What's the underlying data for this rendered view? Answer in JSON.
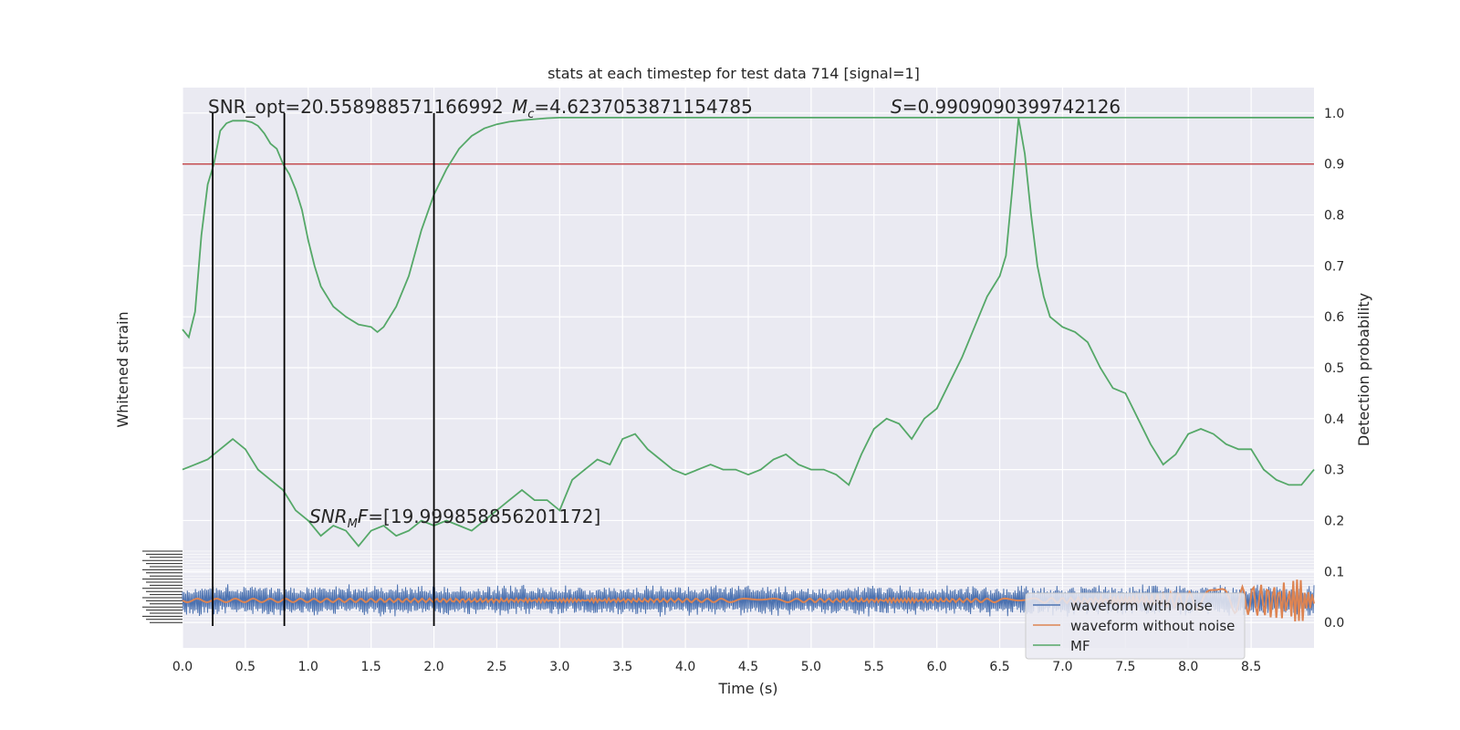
{
  "chart_data": {
    "type": "line",
    "title": "stats at each timestep for test data 714 [signal=1]",
    "xlabel": "Time (s)",
    "ylabel_left": "Whitened strain",
    "ylabel_right": "Detection probability",
    "xlim": [
      0.0,
      9.0
    ],
    "ylim_right": [
      -0.05,
      1.05
    ],
    "xticks": [
      "0.0",
      "0.5",
      "1.0",
      "1.5",
      "2.0",
      "2.5",
      "3.0",
      "3.5",
      "4.0",
      "4.5",
      "5.0",
      "5.5",
      "6.0",
      "6.5",
      "7.0",
      "7.5",
      "8.0",
      "8.5"
    ],
    "yticks_right": [
      "0.0",
      "0.1",
      "0.2",
      "0.3",
      "0.4",
      "0.5",
      "0.6",
      "0.7",
      "0.8",
      "0.9",
      "1.0"
    ],
    "grid": true,
    "threshold": 0.9,
    "vertical_markers": [
      0.24,
      0.81,
      2.0
    ],
    "annotations": {
      "snr_opt": "SNR_opt=20.558988571166992",
      "mc_symbol": "M",
      "mc_sub": "c",
      "mc_value": "=4.6237053871154785",
      "s_symbol": "S",
      "s_value": "=0.9909090399742126",
      "snrmf_symbol": "SNR",
      "snrmf_sub": "M",
      "snrmf_tail": "F",
      "snrmf_value": "=[19.999858856201172]"
    },
    "legend_position": "lower-right",
    "series": [
      {
        "name": "waveform with noise",
        "color": "#4c72b0",
        "note_amplitude": 1.0
      },
      {
        "name": "waveform without noise",
        "color": "#dd8452"
      },
      {
        "name": "MF",
        "color": "#55a868",
        "x": [
          0.0,
          0.05,
          0.1,
          0.15,
          0.2,
          0.25,
          0.3,
          0.35,
          0.4,
          0.45,
          0.5,
          0.55,
          0.6,
          0.65,
          0.7,
          0.75,
          0.8,
          0.85,
          0.9,
          0.95,
          1.0,
          1.05,
          1.1,
          1.2,
          1.3,
          1.4,
          1.5,
          1.55,
          1.6,
          1.7,
          1.8,
          1.9,
          2.0,
          2.1,
          2.2,
          2.3,
          2.4,
          2.5,
          2.6,
          2.7,
          2.8,
          2.9,
          3.0,
          3.2,
          3.5,
          4.0,
          5.0,
          6.0,
          7.0,
          8.0,
          9.0
        ],
        "y": [
          0.575,
          0.56,
          0.61,
          0.76,
          0.86,
          0.9,
          0.965,
          0.98,
          0.985,
          0.985,
          0.985,
          0.982,
          0.975,
          0.96,
          0.94,
          0.93,
          0.9,
          0.88,
          0.85,
          0.81,
          0.75,
          0.7,
          0.66,
          0.62,
          0.6,
          0.585,
          0.58,
          0.57,
          0.58,
          0.62,
          0.68,
          0.77,
          0.84,
          0.89,
          0.93,
          0.955,
          0.97,
          0.978,
          0.983,
          0.986,
          0.988,
          0.99,
          0.991,
          0.991,
          0.991,
          0.991,
          0.991,
          0.991,
          0.991,
          0.991,
          0.991
        ]
      },
      {
        "name": "",
        "color": "#55a868",
        "x": [
          0.0,
          0.1,
          0.2,
          0.3,
          0.4,
          0.5,
          0.6,
          0.7,
          0.8,
          0.9,
          1.0,
          1.1,
          1.2,
          1.3,
          1.4,
          1.5,
          1.6,
          1.7,
          1.8,
          1.9,
          2.0,
          2.1,
          2.2,
          2.3,
          2.4,
          2.5,
          2.6,
          2.7,
          2.8,
          2.9,
          3.0,
          3.1,
          3.2,
          3.3,
          3.4,
          3.5,
          3.6,
          3.7,
          3.8,
          3.9,
          4.0,
          4.1,
          4.2,
          4.3,
          4.4,
          4.5,
          4.6,
          4.7,
          4.8,
          4.9,
          5.0,
          5.1,
          5.2,
          5.3,
          5.4,
          5.5,
          5.6,
          5.7,
          5.8,
          5.9,
          6.0,
          6.1,
          6.2,
          6.3,
          6.4,
          6.5,
          6.55,
          6.6,
          6.65,
          6.7,
          6.75,
          6.8,
          6.85,
          6.9,
          7.0,
          7.1,
          7.2,
          7.3,
          7.4,
          7.5,
          7.6,
          7.7,
          7.8,
          7.9,
          8.0,
          8.1,
          8.2,
          8.3,
          8.4,
          8.5,
          8.6,
          8.7,
          8.8,
          8.9,
          9.0
        ],
        "y": [
          0.3,
          0.31,
          0.32,
          0.34,
          0.36,
          0.34,
          0.3,
          0.28,
          0.26,
          0.22,
          0.2,
          0.17,
          0.19,
          0.18,
          0.15,
          0.18,
          0.19,
          0.17,
          0.18,
          0.2,
          0.19,
          0.2,
          0.19,
          0.18,
          0.2,
          0.22,
          0.24,
          0.26,
          0.24,
          0.24,
          0.22,
          0.28,
          0.3,
          0.32,
          0.31,
          0.36,
          0.37,
          0.34,
          0.32,
          0.3,
          0.29,
          0.3,
          0.31,
          0.3,
          0.3,
          0.29,
          0.3,
          0.32,
          0.33,
          0.31,
          0.3,
          0.3,
          0.29,
          0.27,
          0.33,
          0.38,
          0.4,
          0.39,
          0.36,
          0.4,
          0.42,
          0.47,
          0.52,
          0.58,
          0.64,
          0.68,
          0.72,
          0.85,
          0.99,
          0.92,
          0.8,
          0.7,
          0.64,
          0.6,
          0.58,
          0.57,
          0.55,
          0.5,
          0.46,
          0.45,
          0.4,
          0.35,
          0.31,
          0.33,
          0.37,
          0.38,
          0.37,
          0.35,
          0.34,
          0.34,
          0.3,
          0.28,
          0.27,
          0.27,
          0.3
        ]
      }
    ]
  }
}
